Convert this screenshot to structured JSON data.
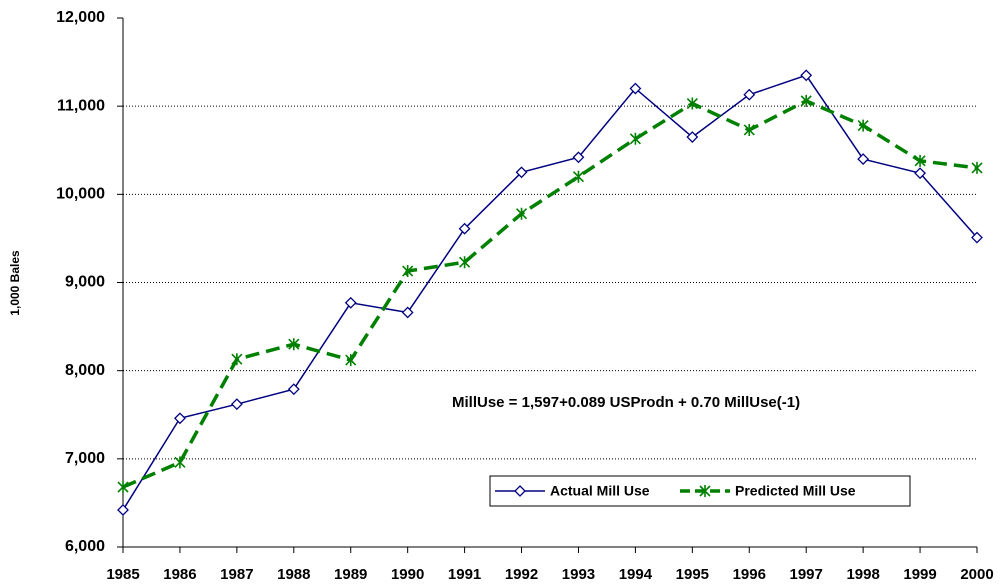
{
  "chart_data": {
    "type": "line",
    "y_label": "1,000 Bales",
    "annotation": "MillUse = 1,597+0.089 USProdn + 0.70 MillUse(-1)",
    "categories": [
      "1985",
      "1986",
      "1987",
      "1988",
      "1989",
      "1990",
      "1991",
      "1992",
      "1993",
      "1994",
      "1995",
      "1996",
      "1997",
      "1998",
      "1999",
      "2000"
    ],
    "series": [
      {
        "name": "Actual Mill Use",
        "color": "#000080",
        "marker": "diamond",
        "dashed": false,
        "values": [
          6420,
          7460,
          7620,
          7790,
          8770,
          8660,
          9610,
          10250,
          10420,
          11200,
          10650,
          11130,
          11350,
          10400,
          10240,
          9510
        ]
      },
      {
        "name": "Predicted Mill Use",
        "color": "#008000",
        "marker": "star",
        "dashed": true,
        "values": [
          6680,
          6960,
          8130,
          8300,
          8120,
          9130,
          9230,
          9780,
          10200,
          10630,
          11030,
          10730,
          11060,
          10780,
          10380,
          10300
        ]
      }
    ],
    "ylim": [
      6000,
      12000
    ],
    "yticks": [
      {
        "value": 6000,
        "label": "6,000"
      },
      {
        "value": 7000,
        "label": "7,000"
      },
      {
        "value": 8000,
        "label": "8,000"
      },
      {
        "value": 9000,
        "label": "9,000"
      },
      {
        "value": 10000,
        "label": "10,000"
      },
      {
        "value": 11000,
        "label": "11,000"
      },
      {
        "value": 12000,
        "label": "12,000"
      }
    ],
    "grid": true
  }
}
